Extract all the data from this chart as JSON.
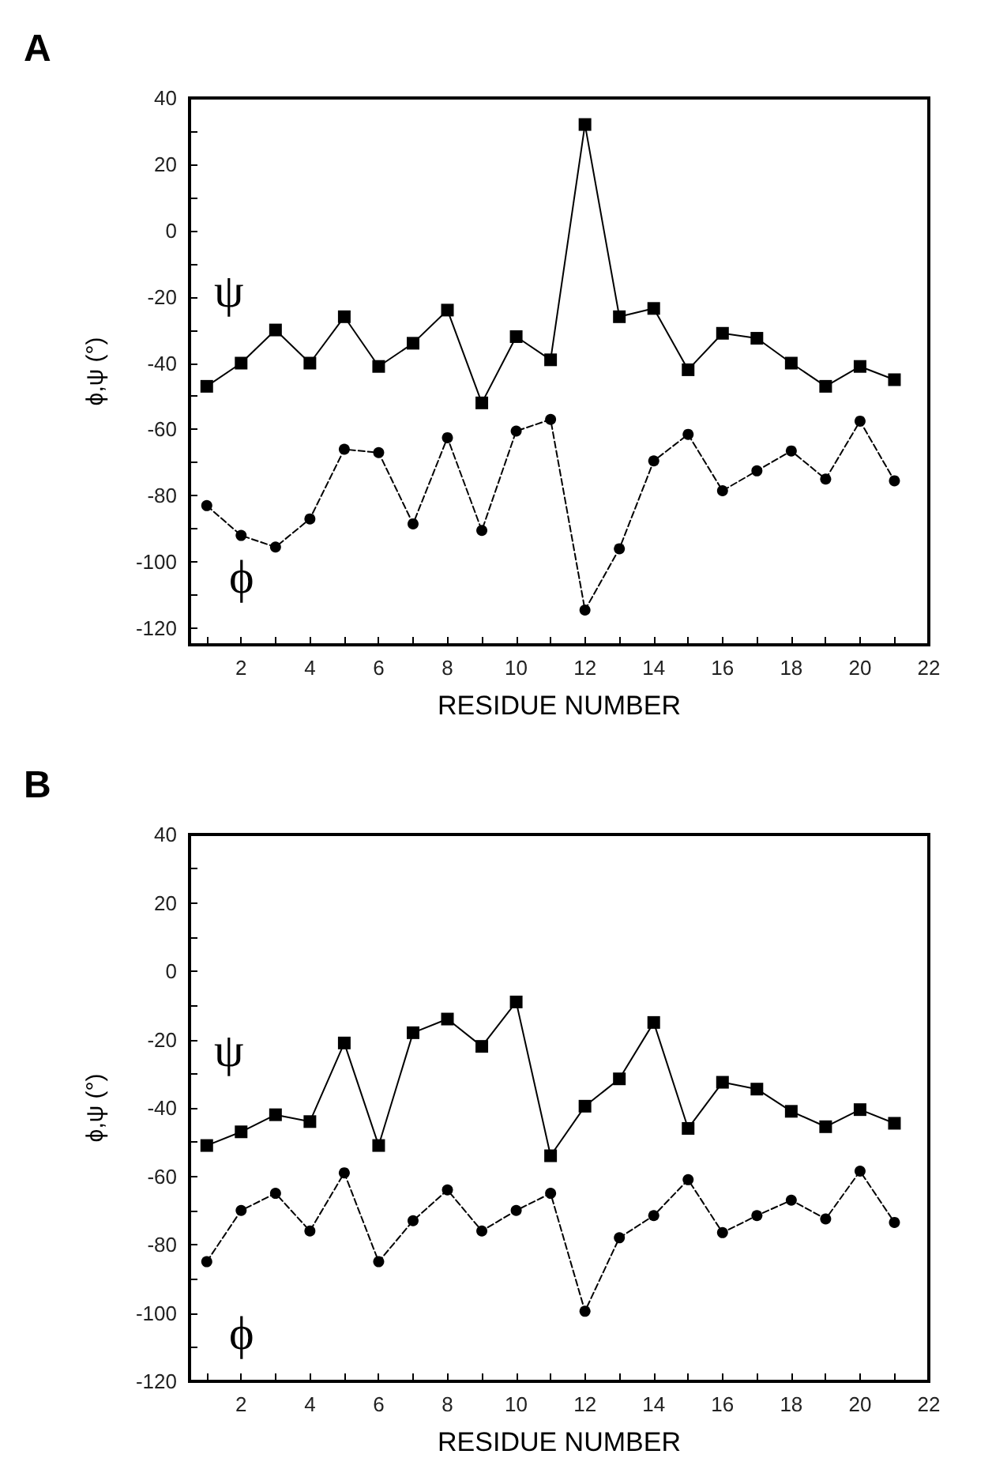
{
  "chart_data": [
    {
      "type": "line",
      "title": "A",
      "xlabel": "RESIDUE NUMBER",
      "ylabel": "ϕ,ψ (°)",
      "x": [
        1,
        2,
        3,
        4,
        5,
        6,
        7,
        8,
        9,
        10,
        11,
        12,
        13,
        14,
        15,
        16,
        17,
        18,
        19,
        20,
        21
      ],
      "series": [
        {
          "name": "ψ",
          "color": "#000000",
          "marker": "square",
          "line_style": "solid",
          "values": [
            -47,
            -40,
            -30,
            -40,
            -26,
            -41,
            -34,
            -24,
            -52,
            -32,
            -39,
            32,
            -26,
            -23.5,
            -42,
            -31,
            -32.5,
            -40,
            -47,
            -41,
            -45
          ]
        },
        {
          "name": "ϕ",
          "color": "#000000",
          "marker": "circle",
          "line_style": "dashed",
          "values": [
            -83,
            -92,
            -95.5,
            -87,
            -66,
            -67,
            -88.5,
            -62.5,
            -90.5,
            -60.5,
            -57,
            -114.5,
            -96,
            -69.5,
            -61.5,
            -78.5,
            -72.5,
            -66.5,
            -75,
            -57.5,
            -75.5
          ]
        }
      ],
      "xlim": [
        0.5,
        22
      ],
      "xticks": [
        {
          "value": 1,
          "label": null
        },
        2,
        {
          "value": 3,
          "label": null
        },
        4,
        {
          "value": 5,
          "label": null
        },
        6,
        {
          "value": 7,
          "label": null
        },
        8,
        {
          "value": 9,
          "label": null
        },
        10,
        {
          "value": 11,
          "label": null
        },
        12,
        {
          "value": 13,
          "label": null
        },
        14,
        {
          "value": 15,
          "label": null
        },
        16,
        {
          "value": 17,
          "label": null
        },
        18,
        {
          "value": 19,
          "label": null
        },
        20,
        {
          "value": 21,
          "label": null
        },
        22
      ],
      "ylim": [
        -125,
        40
      ],
      "yticks": [
        -120,
        {
          "value": -110,
          "label": null
        },
        -100,
        {
          "value": -90,
          "label": null
        },
        -80,
        {
          "value": -70,
          "label": null
        },
        -60,
        {
          "value": -50,
          "label": null
        },
        -40,
        {
          "value": -30,
          "label": null
        },
        -20,
        {
          "value": -10,
          "label": null
        },
        0,
        {
          "value": 10,
          "label": null
        },
        20,
        {
          "value": 30,
          "label": null
        },
        40
      ],
      "grid": false,
      "legend": false
    },
    {
      "type": "line",
      "title": "B",
      "xlabel": "RESIDUE NUMBER",
      "ylabel": "ϕ,ψ (°)",
      "x": [
        1,
        2,
        3,
        4,
        5,
        6,
        7,
        8,
        9,
        10,
        11,
        12,
        13,
        14,
        15,
        16,
        17,
        18,
        19,
        20,
        21
      ],
      "series": [
        {
          "name": "ψ",
          "color": "#000000",
          "marker": "square",
          "line_style": "solid",
          "values": [
            -51,
            -47,
            -42,
            -44,
            -21,
            -51,
            -18,
            -14,
            -22,
            -9,
            -54,
            -39.5,
            -31.5,
            -15,
            -46,
            -32.5,
            -34.5,
            -41,
            -45.5,
            -40.5,
            -44.5
          ]
        },
        {
          "name": "ϕ",
          "color": "#000000",
          "marker": "circle",
          "line_style": "dashed",
          "values": [
            -85,
            -70,
            -65,
            -76,
            -59,
            -85,
            -73,
            -64,
            -76,
            -70,
            -65,
            -99.5,
            -78,
            -71.5,
            -61,
            -76.5,
            -71.5,
            -67,
            -72.5,
            -58.5,
            -73.5
          ]
        }
      ],
      "xlim": [
        0.5,
        22
      ],
      "xticks": [
        {
          "value": 1,
          "label": null
        },
        2,
        {
          "value": 3,
          "label": null
        },
        4,
        {
          "value": 5,
          "label": null
        },
        6,
        {
          "value": 7,
          "label": null
        },
        8,
        {
          "value": 9,
          "label": null
        },
        10,
        {
          "value": 11,
          "label": null
        },
        12,
        {
          "value": 13,
          "label": null
        },
        14,
        {
          "value": 15,
          "label": null
        },
        16,
        {
          "value": 17,
          "label": null
        },
        18,
        {
          "value": 19,
          "label": null
        },
        20,
        {
          "value": 21,
          "label": null
        },
        22
      ],
      "ylim": [
        -120,
        40
      ],
      "yticks": [
        -120,
        {
          "value": -110,
          "label": null
        },
        -100,
        {
          "value": -90,
          "label": null
        },
        -80,
        {
          "value": -70,
          "label": null
        },
        -60,
        {
          "value": -50,
          "label": null
        },
        -40,
        {
          "value": -30,
          "label": null
        },
        -20,
        {
          "value": -10,
          "label": null
        },
        0,
        {
          "value": 10,
          "label": null
        },
        20,
        {
          "value": 30,
          "label": null
        },
        40
      ],
      "grid": false,
      "legend": false
    }
  ]
}
